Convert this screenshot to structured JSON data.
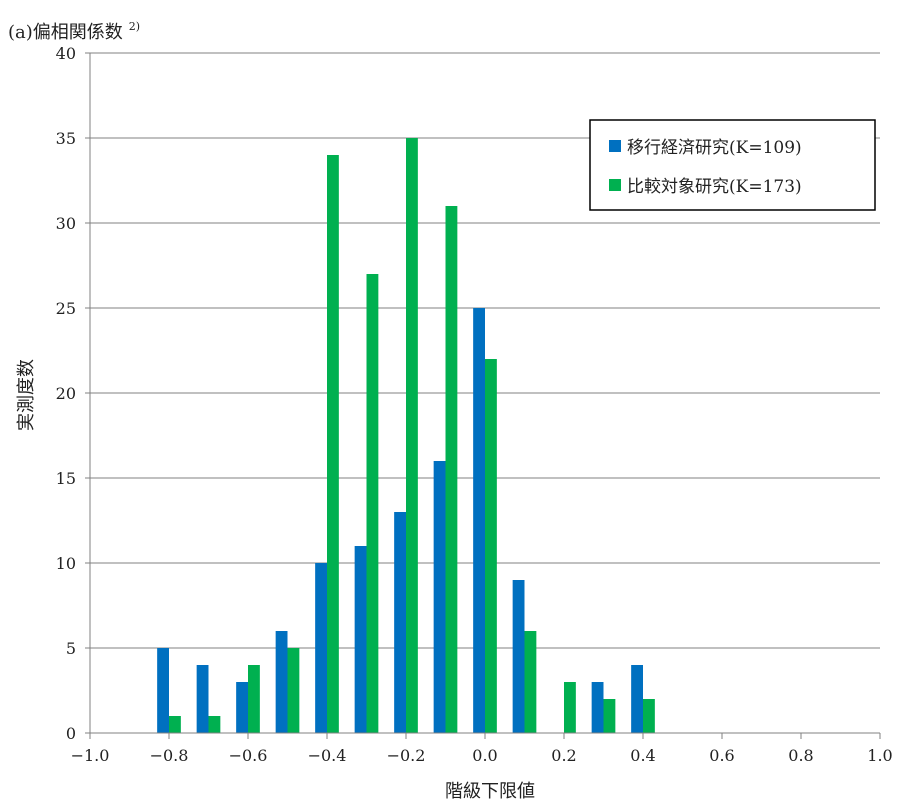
{
  "chart_data": {
    "type": "bar",
    "title": "(a)偏相関係数",
    "title_superscript": "2)",
    "xlabel": "階級下限値",
    "ylabel": "実測度数",
    "ylim": [
      0,
      40
    ],
    "yticks": [
      "0",
      "5",
      "10",
      "15",
      "20",
      "25",
      "30",
      "35",
      "40"
    ],
    "xlim": [
      -1.0,
      1.0
    ],
    "xticks": [
      "−1.0",
      "−0.8",
      "−0.6",
      "−0.4",
      "−0.2",
      "0.0",
      "0.2",
      "0.4",
      "0.6",
      "0.8",
      "1.0"
    ],
    "categories": [
      -0.8,
      -0.7,
      -0.6,
      -0.5,
      -0.4,
      -0.3,
      -0.2,
      -0.1,
      0.0,
      0.1,
      0.2,
      0.3,
      0.4
    ],
    "series": [
      {
        "name": "移行経済研究(K=109)",
        "color": "#0070C0",
        "values": [
          5,
          4,
          3,
          6,
          10,
          11,
          13,
          16,
          25,
          9,
          0,
          3,
          4
        ]
      },
      {
        "name": "比較対象研究(K=173)",
        "color": "#00B050",
        "values": [
          1,
          1,
          4,
          5,
          34,
          27,
          35,
          31,
          22,
          6,
          3,
          2,
          2
        ]
      }
    ],
    "grid": "horizontal",
    "legend_position": "top-right"
  }
}
